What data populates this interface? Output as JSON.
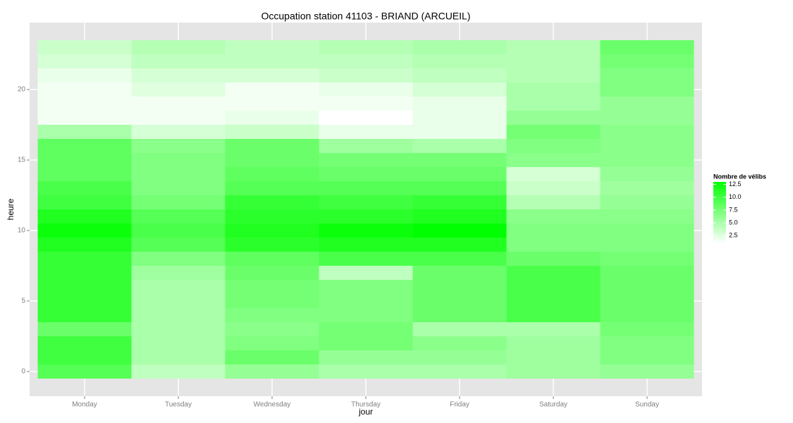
{
  "chart_data": {
    "type": "heatmap",
    "title": "Occupation station 41103 - BRIAND (ARCUEIL)",
    "xlabel": "jour",
    "ylabel": "heure",
    "categories": [
      "Monday",
      "Tuesday",
      "Wednesday",
      "Thursday",
      "Friday",
      "Saturday",
      "Sunday"
    ],
    "y": [
      0,
      1,
      2,
      3,
      4,
      5,
      6,
      7,
      8,
      9,
      10,
      11,
      12,
      13,
      14,
      15,
      16,
      17,
      18,
      19,
      20,
      21,
      22,
      23
    ],
    "values": [
      [
        9,
        10,
        10,
        8,
        10.5,
        10.5,
        10.5,
        10.5,
        10.5,
        11.5,
        12.5,
        11.5,
        10,
        9.5,
        8.5,
        8.5,
        8.5,
        5,
        1.5,
        1.5,
        1.5,
        2,
        3,
        3.5
      ],
      [
        4,
        5,
        5,
        5,
        5,
        5,
        5,
        5.5,
        7,
        9,
        9.5,
        9,
        7.5,
        7,
        7,
        7,
        6.5,
        3,
        1.5,
        1.5,
        2.5,
        3,
        4,
        4.5
      ],
      [
        6,
        8,
        7,
        6.5,
        7,
        7.5,
        7.5,
        8,
        8.5,
        11,
        11.5,
        11,
        10.5,
        9,
        8.5,
        8,
        8,
        3.5,
        2,
        1.5,
        1.5,
        3,
        4,
        4
      ],
      [
        5,
        6,
        7.5,
        7.5,
        7,
        7,
        7,
        4,
        9.5,
        11.5,
        12.5,
        11,
        10,
        9,
        8,
        7.5,
        5.5,
        2,
        1,
        1.5,
        2,
        3.5,
        4,
        4.5
      ],
      [
        5,
        6,
        6.5,
        5,
        8,
        8,
        8,
        8,
        9.5,
        11.5,
        13,
        11.5,
        10.5,
        9,
        8,
        7.5,
        5,
        2,
        2,
        2,
        3,
        4,
        4.5,
        5
      ],
      [
        5.5,
        5.5,
        5.5,
        5,
        9.5,
        9.5,
        9.5,
        9.5,
        8,
        7,
        7,
        6.5,
        4.5,
        3.5,
        3,
        6.5,
        7,
        7.5,
        6,
        5,
        5,
        4.5,
        4.5,
        4.5
      ],
      [
        6,
        7,
        7,
        7.5,
        8,
        8,
        8,
        8,
        7.5,
        7,
        7,
        6.5,
        6,
        5.5,
        6,
        6.5,
        6.5,
        6.5,
        6,
        6,
        7,
        7,
        7.5,
        8
      ]
    ],
    "ylim": [
      -1.75,
      24.75
    ],
    "yticks": [
      0,
      5,
      10,
      15,
      20
    ],
    "grid": true,
    "legend_title": "Nombre de vélibs",
    "color_low": "#ffffff",
    "color_high": "#00ff00",
    "colorlim": [
      1,
      13
    ],
    "colorbar_ticks": [
      12.5,
      {
        "value": 10,
        "label": "10.0"
      },
      7.5,
      {
        "value": 5,
        "label": "5.0"
      },
      2.5
    ]
  }
}
